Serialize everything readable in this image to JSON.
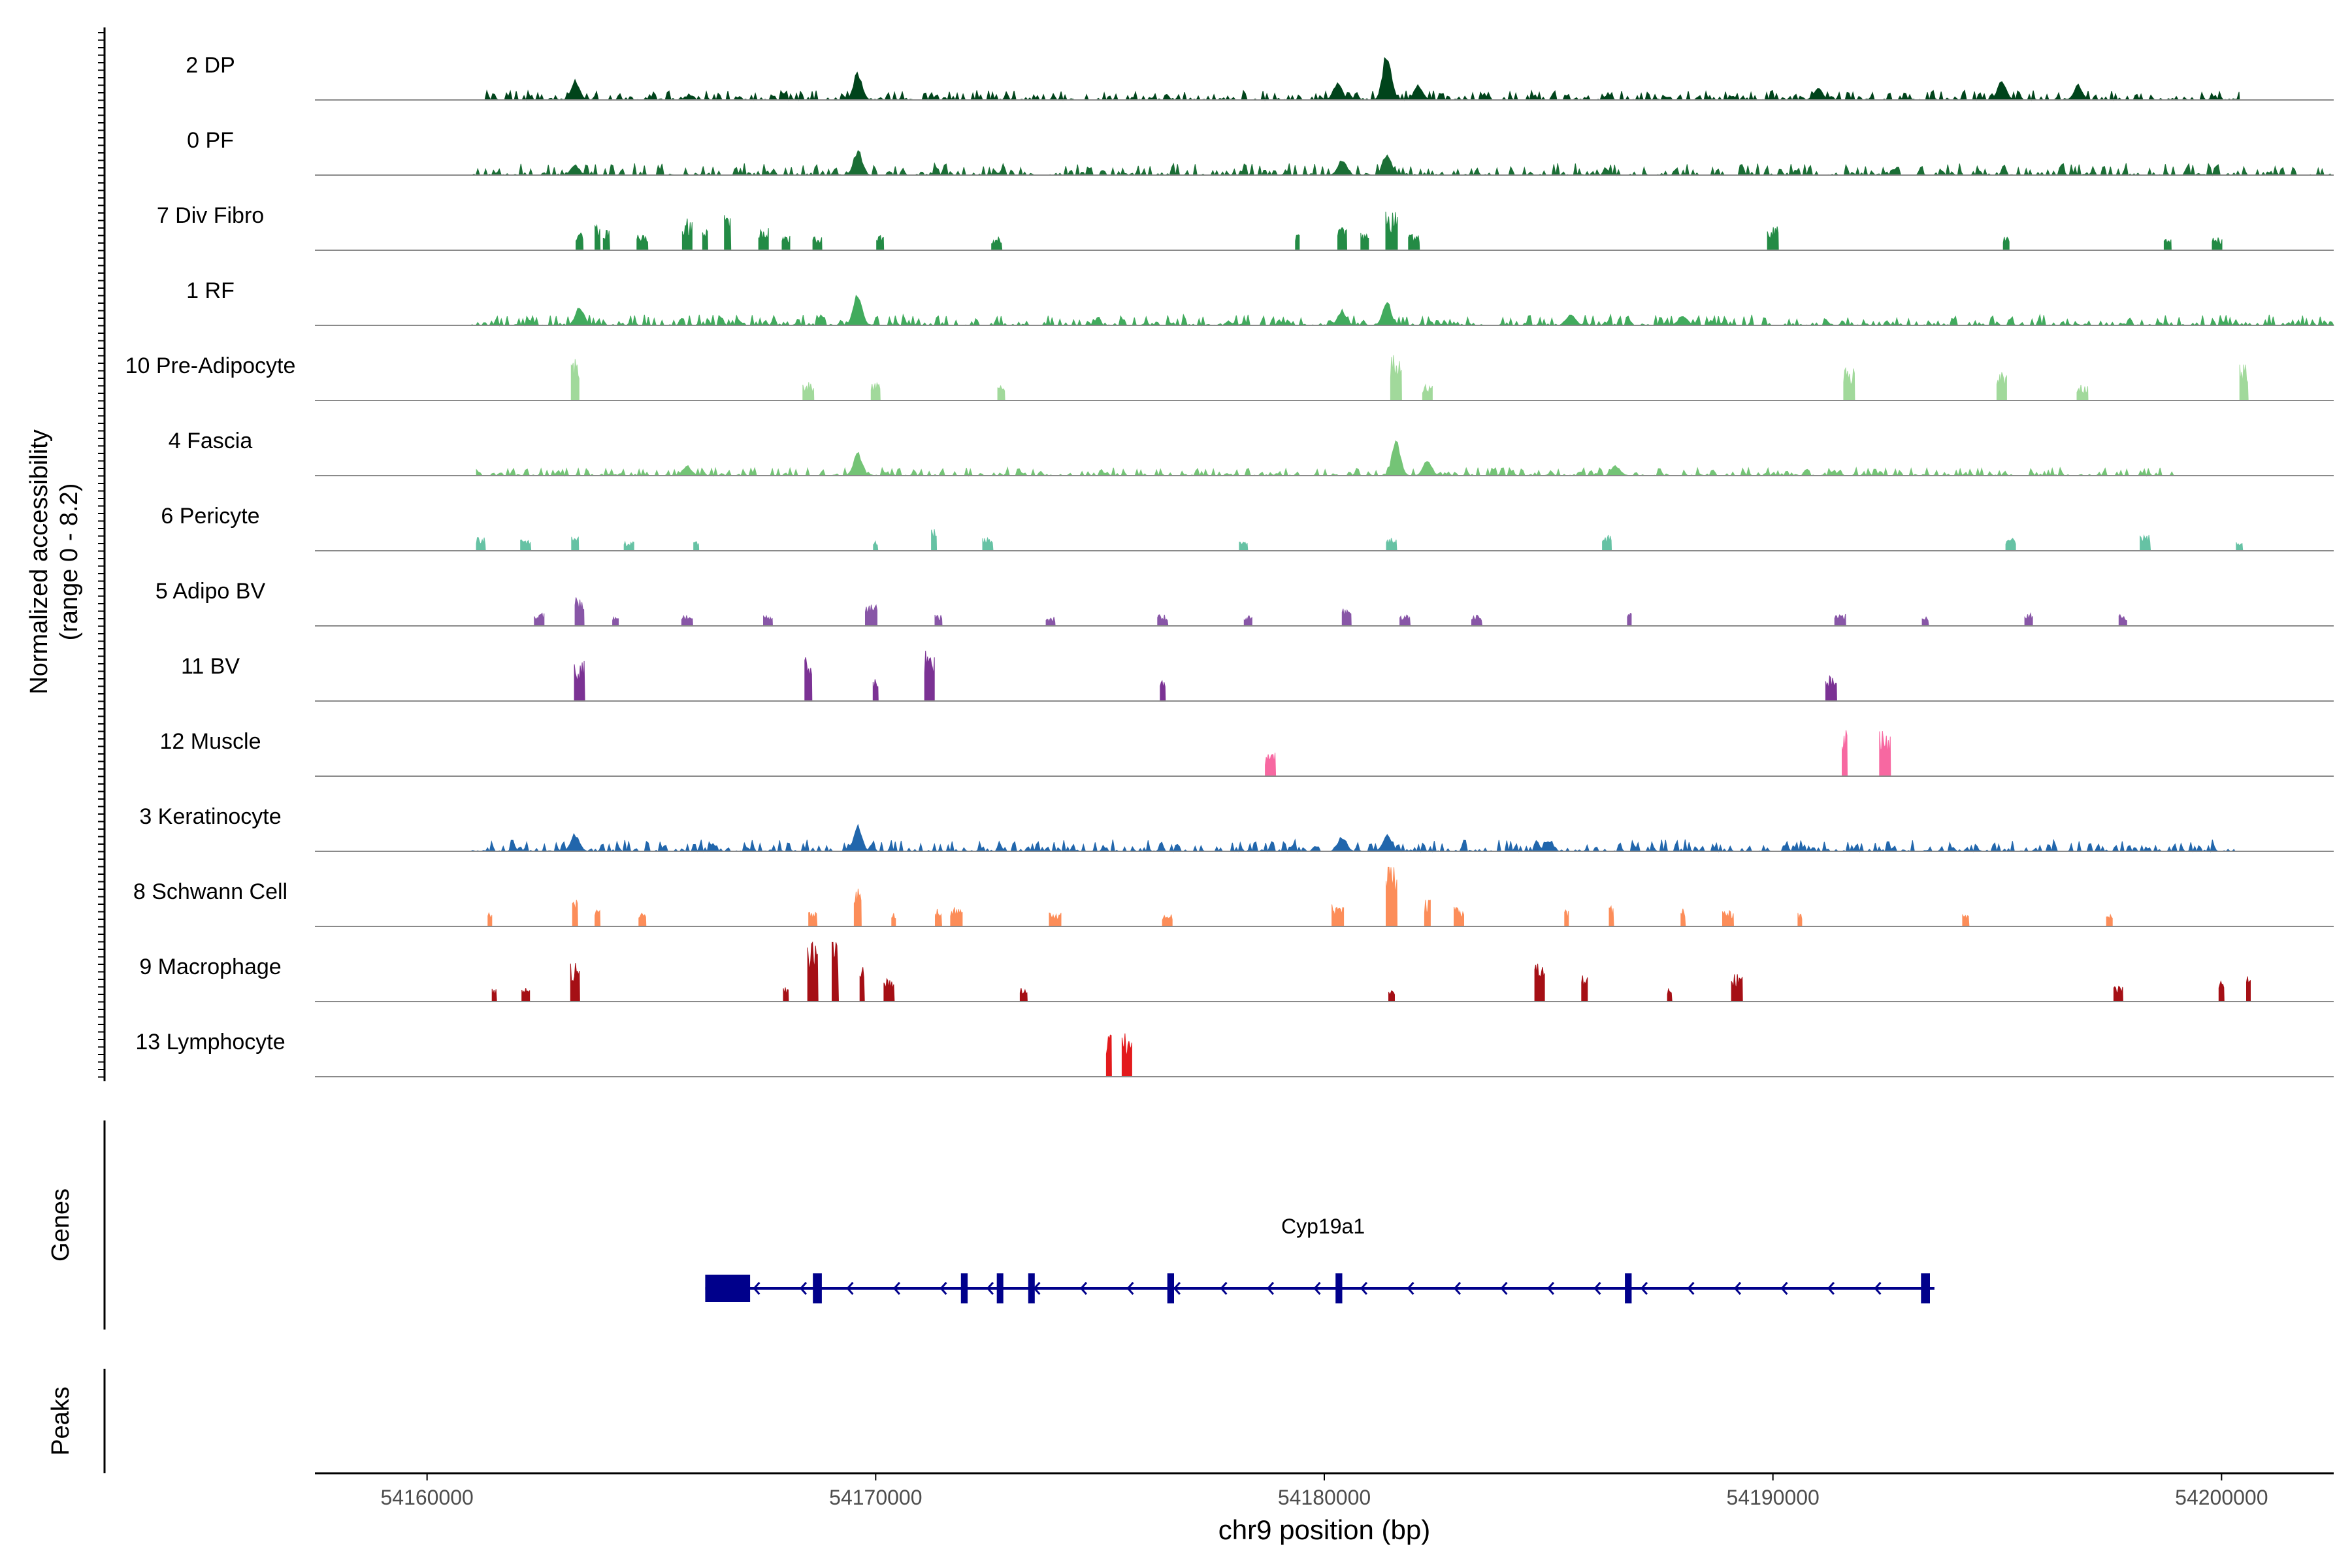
{
  "chart_data": {
    "type": "area",
    "title": "",
    "ylabel_line1": "Normalized accessibility",
    "ylabel_line2": "(range 0 - 8.2)",
    "y_range": [
      0,
      8.2
    ],
    "genes_label": "Genes",
    "peaks_label": "Peaks",
    "xlabel": "chr9 position (bp)",
    "xlim": [
      54157500,
      54202500
    ],
    "x_ticks": [
      54160000,
      54170000,
      54180000,
      54190000,
      54200000
    ],
    "x_tick_labels": [
      "54160000",
      "54170000",
      "54180000",
      "54190000",
      "54200000"
    ],
    "tracks": [
      {
        "label": "2 DP",
        "color": "#00441b",
        "noise": 0.18,
        "span": [
          54161200,
          54200400
        ],
        "peaks": [
          [
            54163300,
            0.4
          ],
          [
            54169600,
            0.55
          ],
          [
            54181400,
            1.0
          ],
          [
            54180300,
            0.35
          ],
          [
            54182100,
            0.3
          ],
          [
            54195100,
            0.4
          ],
          [
            54196800,
            0.3
          ],
          [
            54191000,
            0.25
          ]
        ]
      },
      {
        "label": "0 PF",
        "color": "#1a6e35",
        "noise": 0.22,
        "span": [
          54161000,
          54204200
        ],
        "peaks": [
          [
            54169600,
            0.5
          ],
          [
            54181400,
            0.45
          ],
          [
            54180400,
            0.3
          ],
          [
            54163300,
            0.2
          ]
        ]
      },
      {
        "label": "7 Div Fibro",
        "color": "#238b45",
        "noise": 0,
        "span": [
          54163000,
          54200300
        ],
        "blocks": [
          [
            54163400,
            0.45
          ],
          [
            54163800,
            0.6
          ],
          [
            54164000,
            0.45
          ],
          [
            54164800,
            0.35
          ],
          [
            54165800,
            0.7
          ],
          [
            54166200,
            0.5
          ],
          [
            54166700,
            0.8
          ],
          [
            54167500,
            0.5
          ],
          [
            54168000,
            0.35
          ],
          [
            54168700,
            0.3
          ],
          [
            54170100,
            0.35
          ],
          [
            54172700,
            0.3
          ],
          [
            54179400,
            0.4
          ],
          [
            54180400,
            0.5
          ],
          [
            54180900,
            0.4
          ],
          [
            54181500,
            0.85
          ],
          [
            54182000,
            0.35
          ],
          [
            54190000,
            0.55
          ],
          [
            54195200,
            0.3
          ],
          [
            54198800,
            0.3
          ],
          [
            54199900,
            0.3
          ]
        ]
      },
      {
        "label": "1 RF",
        "color": "#41ab5d",
        "noise": 0.2,
        "span": [
          54161000,
          54204200
        ],
        "peaks": [
          [
            54163400,
            0.4
          ],
          [
            54169600,
            0.65
          ],
          [
            54181400,
            0.45
          ],
          [
            54180400,
            0.3
          ],
          [
            54185500,
            0.25
          ],
          [
            54188000,
            0.2
          ]
        ]
      },
      {
        "label": "10 Pre-Adipocyte",
        "color": "#a1d99b",
        "noise": 0,
        "span": [
          54163000,
          54204200
        ],
        "blocks": [
          [
            54163300,
            1.0
          ],
          [
            54168500,
            0.4
          ],
          [
            54170000,
            0.4
          ],
          [
            54172800,
            0.35
          ],
          [
            54181600,
            1.0
          ],
          [
            54182300,
            0.35
          ],
          [
            54191700,
            0.75
          ],
          [
            54195100,
            0.65
          ],
          [
            54196900,
            0.35
          ],
          [
            54200500,
            0.8
          ]
        ]
      },
      {
        "label": "4 Fascia",
        "color": "#74c476",
        "noise": 0.15,
        "span": [
          54161100,
          54199000
        ],
        "peaks": [
          [
            54169600,
            0.45
          ],
          [
            54181600,
            0.7
          ],
          [
            54182300,
            0.3
          ],
          [
            54165800,
            0.2
          ],
          [
            54186500,
            0.2
          ]
        ]
      },
      {
        "label": "6 Pericyte",
        "color": "#66c2a4",
        "noise": 0,
        "span": [
          54161000,
          54204200
        ],
        "blocks": [
          [
            54161200,
            0.3
          ],
          [
            54162200,
            0.25
          ],
          [
            54163300,
            0.4
          ],
          [
            54164500,
            0.2
          ],
          [
            54166000,
            0.2
          ],
          [
            54170000,
            0.25
          ],
          [
            54171300,
            0.5
          ],
          [
            54172500,
            0.3
          ],
          [
            54178200,
            0.2
          ],
          [
            54181500,
            0.3
          ],
          [
            54186300,
            0.35
          ],
          [
            54195300,
            0.3
          ],
          [
            54198300,
            0.35
          ],
          [
            54200400,
            0.2
          ]
        ]
      },
      {
        "label": "5 Adipo BV",
        "color": "#8856a7",
        "noise": 0,
        "span": [
          54161800,
          54198800
        ],
        "blocks": [
          [
            54162500,
            0.3
          ],
          [
            54163400,
            0.7
          ],
          [
            54164200,
            0.2
          ],
          [
            54165800,
            0.25
          ],
          [
            54167600,
            0.25
          ],
          [
            54169900,
            0.5
          ],
          [
            54171400,
            0.25
          ],
          [
            54173900,
            0.2
          ],
          [
            54176400,
            0.25
          ],
          [
            54178300,
            0.25
          ],
          [
            54180500,
            0.4
          ],
          [
            54181800,
            0.25
          ],
          [
            54183400,
            0.25
          ],
          [
            54186800,
            0.3
          ],
          [
            54191500,
            0.3
          ],
          [
            54193400,
            0.2
          ],
          [
            54195700,
            0.3
          ],
          [
            54197800,
            0.25
          ]
        ]
      },
      {
        "label": "11 BV",
        "color": "#7b3294",
        "noise": 0,
        "span": [
          54163000,
          54192000
        ],
        "blocks": [
          [
            54163400,
            0.95
          ],
          [
            54168500,
            1.0
          ],
          [
            54170000,
            0.5
          ],
          [
            54171200,
            1.2
          ],
          [
            54176400,
            0.5
          ],
          [
            54191300,
            0.55
          ]
        ]
      },
      {
        "label": "12 Muscle",
        "color": "#f768a1",
        "noise": 0,
        "span": [
          54178500,
          54192700
        ],
        "blocks": [
          [
            54178800,
            0.55
          ],
          [
            54191600,
            1.1
          ],
          [
            54192500,
            1.0
          ]
        ]
      },
      {
        "label": "3 Keratinocyte",
        "color": "#2166ac",
        "noise": 0.22,
        "span": [
          54161000,
          54200300
        ],
        "peaks": [
          [
            54163300,
            0.35
          ],
          [
            54169600,
            0.5
          ],
          [
            54181400,
            0.35
          ],
          [
            54180400,
            0.3
          ],
          [
            54185000,
            0.2
          ]
        ]
      },
      {
        "label": "8 Schwann Cell",
        "color": "#fc8d59",
        "noise": 0,
        "span": [
          54161100,
          54197500
        ],
        "blocks": [
          [
            54161400,
            0.3
          ],
          [
            54163300,
            0.6
          ],
          [
            54163800,
            0.4
          ],
          [
            54164800,
            0.3
          ],
          [
            54168600,
            0.4
          ],
          [
            54169600,
            0.9
          ],
          [
            54170400,
            0.3
          ],
          [
            54171400,
            0.4
          ],
          [
            54171800,
            0.45
          ],
          [
            54174000,
            0.3
          ],
          [
            54176500,
            0.3
          ],
          [
            54180300,
            0.5
          ],
          [
            54181500,
            1.4
          ],
          [
            54182300,
            0.6
          ],
          [
            54183000,
            0.45
          ],
          [
            54185400,
            0.4
          ],
          [
            54186400,
            0.45
          ],
          [
            54188000,
            0.4
          ],
          [
            54189000,
            0.35
          ],
          [
            54190600,
            0.3
          ],
          [
            54194300,
            0.3
          ],
          [
            54197500,
            0.3
          ]
        ]
      },
      {
        "label": "9 Macrophage",
        "color": "#a50f15",
        "noise": 0,
        "span": [
          54161300,
          54201000
        ],
        "blocks": [
          [
            54161500,
            0.3
          ],
          [
            54162200,
            0.3
          ],
          [
            54163300,
            0.85
          ],
          [
            54168000,
            0.35
          ],
          [
            54168600,
            1.5
          ],
          [
            54169100,
            1.45
          ],
          [
            54169700,
            0.9
          ],
          [
            54170300,
            0.5
          ],
          [
            54173300,
            0.3
          ],
          [
            54181500,
            0.3
          ],
          [
            54184800,
            0.9
          ],
          [
            54185800,
            0.6
          ],
          [
            54187700,
            0.3
          ],
          [
            54189200,
            0.6
          ],
          [
            54197700,
            0.35
          ],
          [
            54200000,
            0.6
          ],
          [
            54200600,
            0.6
          ]
        ]
      },
      {
        "label": "13 Lymphocyte",
        "color": "#e31a1c",
        "noise": 0,
        "span": [
          54175000,
          54175900
        ],
        "blocks": [
          [
            54175200,
            0.95
          ],
          [
            54175600,
            0.95
          ]
        ]
      }
    ],
    "gene": {
      "name": "Cyp19a1",
      "start": 54166200,
      "end": 54193600,
      "strand": "-",
      "color": "#00008b",
      "exons": [
        [
          54166200,
          54167200
        ],
        [
          54168600,
          54168800
        ],
        [
          54171900,
          54172050
        ],
        [
          54172700,
          54172800
        ],
        [
          54173400,
          54173500
        ],
        [
          54176500,
          54176650
        ],
        [
          54180250,
          54180400
        ],
        [
          54186700,
          54186850
        ],
        [
          54193300,
          54193500
        ]
      ]
    }
  }
}
